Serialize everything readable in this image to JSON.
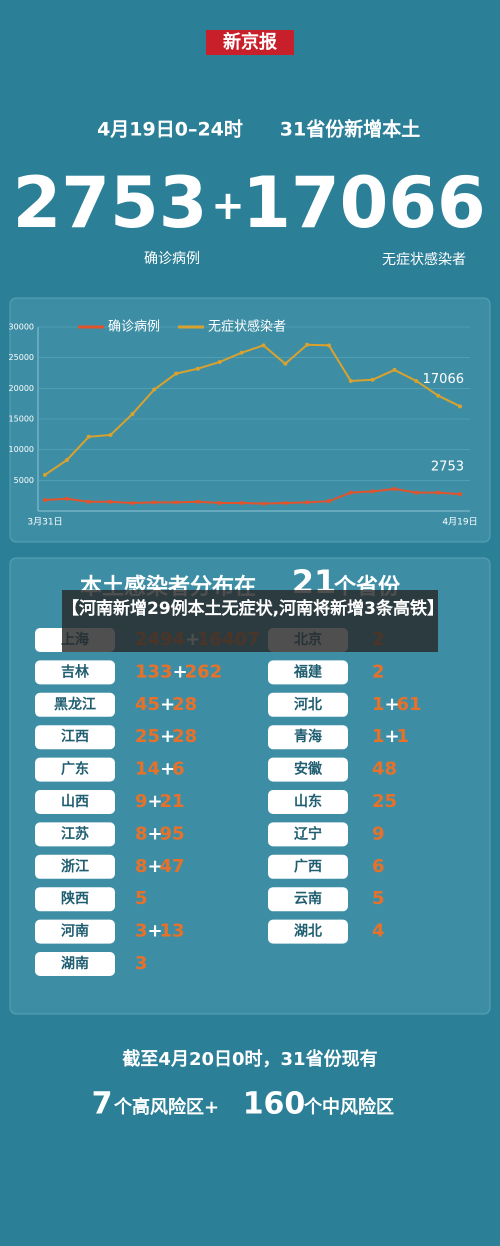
{
  "header": {
    "logo": "新京报",
    "date": "4月19日0–24时",
    "subtitle": "31省份新增本土",
    "confirmed": "2753",
    "asymptomatic": "17066",
    "confirmed_label": "确诊病例",
    "asymptomatic_label": "无症状感染者"
  },
  "plus": "+",
  "chart_data": {
    "type": "line",
    "x": [
      "3月31日",
      null,
      null,
      null,
      null,
      null,
      null,
      null,
      null,
      null,
      null,
      null,
      null,
      null,
      null,
      null,
      null,
      null,
      null,
      "4月19日"
    ],
    "series": [
      {
        "name": "确诊病例",
        "color": "#e3532b",
        "values": [
          1800,
          2000,
          1500,
          1500,
          1300,
          1400,
          1400,
          1500,
          1300,
          1300,
          1200,
          1300,
          1400,
          1600,
          3000,
          3200,
          3600,
          3000,
          3000,
          2753
        ]
      },
      {
        "name": "无症状感染者",
        "color": "#d9a12e",
        "values": [
          5900,
          8300,
          12100,
          12400,
          15800,
          19800,
          22400,
          23200,
          24300,
          25800,
          27000,
          24000,
          27100,
          27000,
          21200,
          21400,
          23000,
          21200,
          18800,
          17066
        ]
      }
    ],
    "ylim": [
      0,
      30000
    ],
    "yticks": [
      5000,
      10000,
      15000,
      20000,
      25000,
      30000
    ],
    "grid": true,
    "legend": "top"
  },
  "distribution": {
    "title_pre": "本土感染者分布在",
    "count": "21",
    "title_post": "个省份",
    "left": [
      {
        "name": "上海",
        "parts": [
          "2494",
          "16407"
        ]
      },
      {
        "name": "吉林",
        "parts": [
          "133",
          "262"
        ]
      },
      {
        "name": "黑龙江",
        "parts": [
          "45",
          "28"
        ]
      },
      {
        "name": "江西",
        "parts": [
          "25",
          "28"
        ]
      },
      {
        "name": "广东",
        "parts": [
          "14",
          "6"
        ]
      },
      {
        "name": "山西",
        "parts": [
          "9",
          "21"
        ]
      },
      {
        "name": "江苏",
        "parts": [
          "8",
          "95"
        ]
      },
      {
        "name": "浙江",
        "parts": [
          "8",
          "47"
        ]
      },
      {
        "name": "陕西",
        "parts": [
          "5"
        ]
      },
      {
        "name": "河南",
        "parts": [
          "3",
          "13"
        ]
      },
      {
        "name": "湖南",
        "parts": [
          "3"
        ]
      }
    ],
    "right": [
      {
        "name": "北京",
        "parts": [
          "2"
        ]
      },
      {
        "name": "福建",
        "parts": [
          "2"
        ]
      },
      {
        "name": "河北",
        "parts": [
          "1",
          "61"
        ]
      },
      {
        "name": "青海",
        "parts": [
          "1",
          "1"
        ]
      },
      {
        "name": "安徽",
        "parts": [
          "48"
        ]
      },
      {
        "name": "山东",
        "parts": [
          "25"
        ]
      },
      {
        "name": "辽宁",
        "parts": [
          "9"
        ]
      },
      {
        "name": "广西",
        "parts": [
          "6"
        ]
      },
      {
        "name": "云南",
        "parts": [
          "5"
        ]
      },
      {
        "name": "湖北",
        "parts": [
          "4"
        ]
      }
    ]
  },
  "caption": "【河南新增29例本土无症状,河南将新增3条高铁】",
  "footer": {
    "line1": "截至4月20日0时，31省份现有",
    "high": "7",
    "high_label": "个高风险区+",
    "mid": "160",
    "mid_label": "个中风险区"
  }
}
